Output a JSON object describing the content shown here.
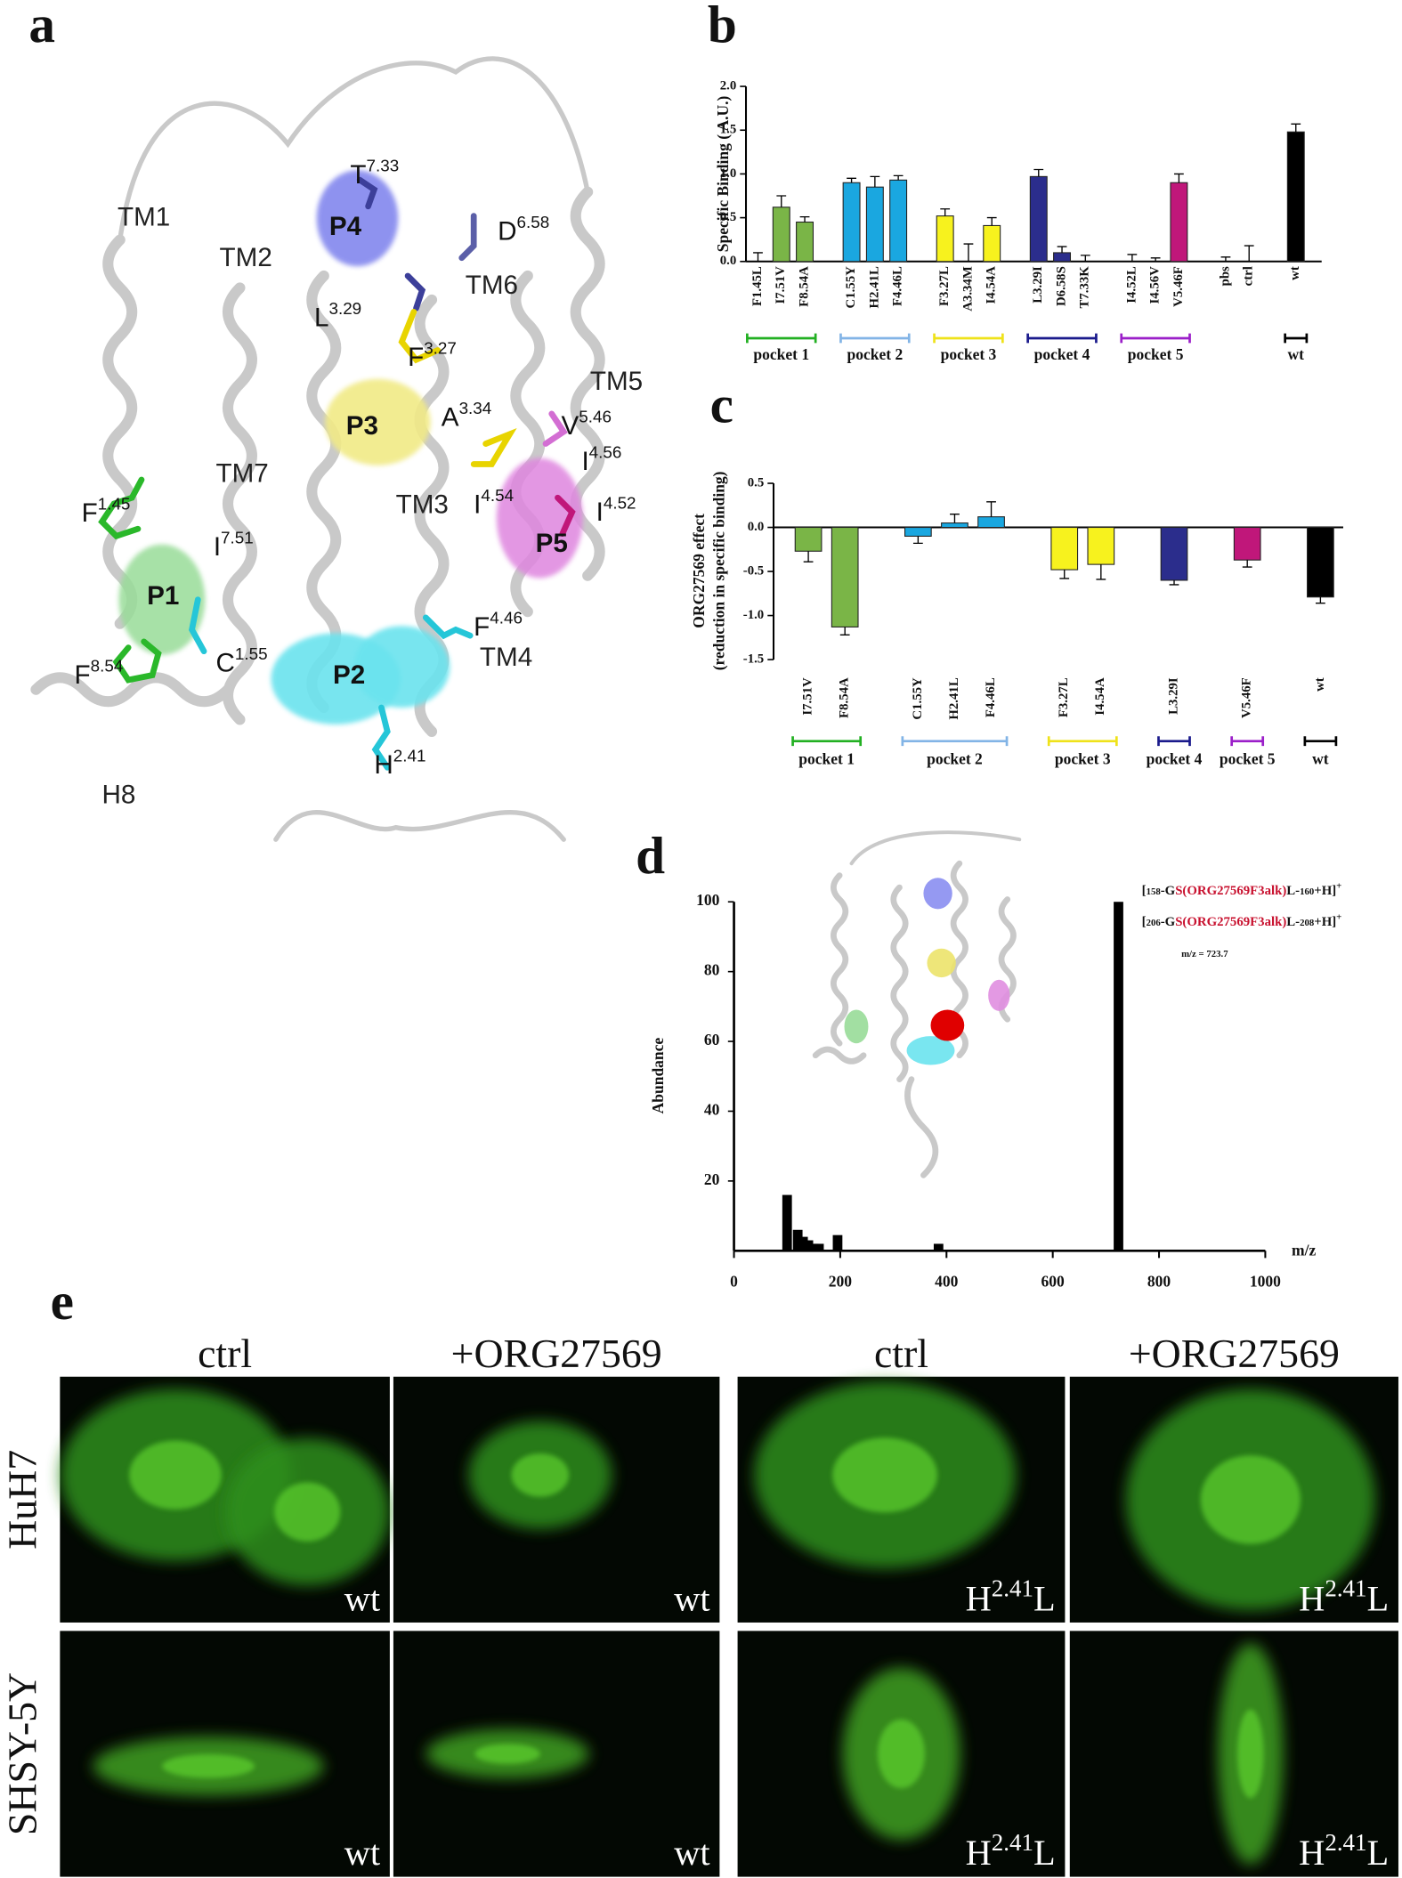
{
  "figure": {
    "panel_letters": [
      "a",
      "b",
      "c",
      "d",
      "e"
    ]
  },
  "structure": {
    "helices": [
      "TM1",
      "TM2",
      "TM6",
      "TM5",
      "TM7",
      "TM3",
      "TM4",
      "H8"
    ],
    "pockets": [
      "P4",
      "P3",
      "P5",
      "P1",
      "P2"
    ],
    "residues": [
      {
        "letter": "T",
        "sup": "7.33"
      },
      {
        "letter": "D",
        "sup": "6.58"
      },
      {
        "letter": "L",
        "sup": "3.29"
      },
      {
        "letter": "F",
        "sup": "3.27"
      },
      {
        "letter": "A",
        "sup": "3.34"
      },
      {
        "letter": "V",
        "sup": "5.46"
      },
      {
        "letter": "I",
        "sup": "4.56"
      },
      {
        "letter": "I",
        "sup": "4.54"
      },
      {
        "letter": "I",
        "sup": "4.52"
      },
      {
        "letter": "F",
        "sup": "1.45"
      },
      {
        "letter": "I",
        "sup": "7.51"
      },
      {
        "letter": "F",
        "sup": "8.54"
      },
      {
        "letter": "C",
        "sup": "1.55"
      },
      {
        "letter": "F",
        "sup": "4.46"
      },
      {
        "letter": "H",
        "sup": "2.41"
      }
    ]
  },
  "chart_data": [
    {
      "type": "bar",
      "ylabel": [
        "Specific Binding ( A.U.)"
      ],
      "ylim": [
        0,
        2.0
      ],
      "yticks": [
        {
          "value": 0,
          "label": "0.0"
        },
        0.5,
        {
          "value": 1,
          "label": "1.0"
        },
        1.5,
        {
          "value": 2,
          "label": "2.0"
        }
      ],
      "groups": [
        {
          "name": "pocket 1",
          "color": "#22b022",
          "bar_color": "#7ab547",
          "categories": [
            "F1.45L",
            "I7.51V",
            "F8.54A"
          ],
          "values": [
            0.0,
            0.62,
            0.45
          ],
          "errors": [
            0.1,
            0.13,
            0.06
          ]
        },
        {
          "name": "pocket 2",
          "color": "#82b4e6",
          "bar_color": "#1aa7e0",
          "categories": [
            "C1.55Y",
            "H2.41L",
            "F4.46L"
          ],
          "values": [
            0.9,
            0.85,
            0.93
          ],
          "errors": [
            0.05,
            0.12,
            0.05
          ]
        },
        {
          "name": "pocket 3",
          "color": "#efe21a",
          "bar_color": "#f7f21e",
          "categories": [
            "F3.27L",
            "A3.34M",
            "I4.54A"
          ],
          "values": [
            0.52,
            0.0,
            0.41
          ],
          "errors": [
            0.08,
            0.2,
            0.09
          ]
        },
        {
          "name": "pocket 4",
          "color": "#1a1a8c",
          "bar_color": "#2b2d8c",
          "categories": [
            "L3.29I",
            "D6.58S",
            "T7.33K"
          ],
          "values": [
            0.97,
            0.1,
            0.0
          ],
          "errors": [
            0.08,
            0.07,
            0.07
          ]
        },
        {
          "name": "pocket 5",
          "color": "#9b1fc9",
          "bar_color": "#c0177a",
          "categories": [
            "I4.52L",
            "I4.56V",
            "V5.46F"
          ],
          "values": [
            0.0,
            0.0,
            0.9
          ],
          "errors": [
            0.08,
            0.04,
            0.1
          ]
        },
        {
          "bar_color": "#000000",
          "categories": [
            "pbs",
            "ctrl"
          ],
          "values": [
            0.0,
            0.0
          ],
          "errors": [
            0.05,
            0.18
          ]
        },
        {
          "name": "wt",
          "color": "#000000",
          "bar_color": "#000000",
          "categories": [
            "wt"
          ],
          "values": [
            1.48
          ],
          "errors": [
            0.09
          ]
        }
      ]
    },
    {
      "type": "bar",
      "ylabel": [
        "ORG27569 effect",
        "(reduction in specific binding)"
      ],
      "ylim": [
        -1.5,
        0.5
      ],
      "yticks": [
        -1.5,
        {
          "value": -1,
          "label": "-1.0"
        },
        -0.5,
        {
          "value": 0,
          "label": "0.0"
        },
        0.5
      ],
      "groups": [
        {
          "name": "pocket 1",
          "color": "#22b022",
          "bar_color": "#7ab547",
          "categories": [
            "I7.51V",
            "F8.54A"
          ],
          "values": [
            -0.27,
            -1.13
          ],
          "errors": [
            0.12,
            0.09
          ]
        },
        {
          "name": "pocket 2",
          "color": "#82b4e6",
          "bar_color": "#1aa7e0",
          "categories": [
            "C1.55Y",
            "H2.41L",
            "F4.46L"
          ],
          "values": [
            -0.1,
            0.05,
            0.12
          ],
          "errors": [
            0.08,
            0.1,
            0.17
          ]
        },
        {
          "name": "pocket 3",
          "color": "#efe21a",
          "bar_color": "#f7f21e",
          "categories": [
            "F3.27L",
            "I4.54A"
          ],
          "values": [
            -0.48,
            -0.42
          ],
          "errors": [
            0.1,
            0.17
          ]
        },
        {
          "name": "pocket 4",
          "color": "#1a1a8c",
          "bar_color": "#2b2d8c",
          "categories": [
            "L3.29I"
          ],
          "values": [
            -0.6
          ],
          "errors": [
            0.05
          ]
        },
        {
          "name": "pocket 5",
          "color": "#9b1fc9",
          "bar_color": "#c0177a",
          "categories": [
            "V5.46F"
          ],
          "values": [
            -0.37
          ],
          "errors": [
            0.08
          ]
        },
        {
          "name": "wt",
          "color": "#000000",
          "bar_color": "#000000",
          "categories": [
            "wt"
          ],
          "values": [
            -0.79
          ],
          "errors": [
            0.07
          ]
        }
      ]
    },
    {
      "type": "bar",
      "xlabel": "m/z",
      "ylabel": [
        "Abundance"
      ],
      "color": "#000000",
      "x": [
        100,
        120,
        130,
        140,
        150,
        160,
        195,
        385,
        723.7
      ],
      "values": [
        16,
        6,
        4,
        3,
        2,
        2,
        4.5,
        2,
        100
      ],
      "xlim": [
        0,
        1000
      ],
      "xticks": [
        0,
        200,
        400,
        600,
        800,
        1000
      ],
      "ylim": [
        0,
        100
      ],
      "yticks": [
        20,
        40,
        60,
        80,
        100
      ],
      "annotations": [
        [
          {
            "text": "["
          },
          {
            "text": "158",
            "style": "small"
          },
          {
            "text": "-G"
          },
          {
            "text": "S(ORG27569F3alk)",
            "style": "red"
          },
          {
            "text": "L-"
          },
          {
            "text": "160",
            "style": "small"
          },
          {
            "text": "+H]"
          },
          {
            "text": "+",
            "style": "sup"
          }
        ],
        [
          {
            "text": "["
          },
          {
            "text": "206",
            "style": "small"
          },
          {
            "text": "-G"
          },
          {
            "text": "S(ORG27569F3alk)",
            "style": "red"
          },
          {
            "text": "L-"
          },
          {
            "text": "208",
            "style": "small"
          },
          {
            "text": "+H]"
          },
          {
            "text": "+",
            "style": "sup"
          }
        ],
        [
          {
            "text": "m/z = 723.7",
            "style": "small"
          }
        ]
      ]
    }
  ],
  "microscopy": {
    "columns": [
      "ctrl",
      "+ORG27569",
      "ctrl",
      "+ORG27569"
    ],
    "rows": [
      "HuH7",
      "SHSY-5Y"
    ],
    "tags": [
      [
        {
          "text": "wt"
        },
        {
          "text": "wt"
        },
        {
          "text": "H",
          "sup": "2.41",
          "tail": "L"
        },
        {
          "text": "H",
          "sup": "2.41",
          "tail": "L"
        }
      ],
      [
        {
          "text": "wt"
        },
        {
          "text": "wt"
        },
        {
          "text": "H",
          "sup": "2.41",
          "tail": "L"
        },
        {
          "text": "H",
          "sup": "2.41",
          "tail": "L"
        }
      ]
    ]
  }
}
